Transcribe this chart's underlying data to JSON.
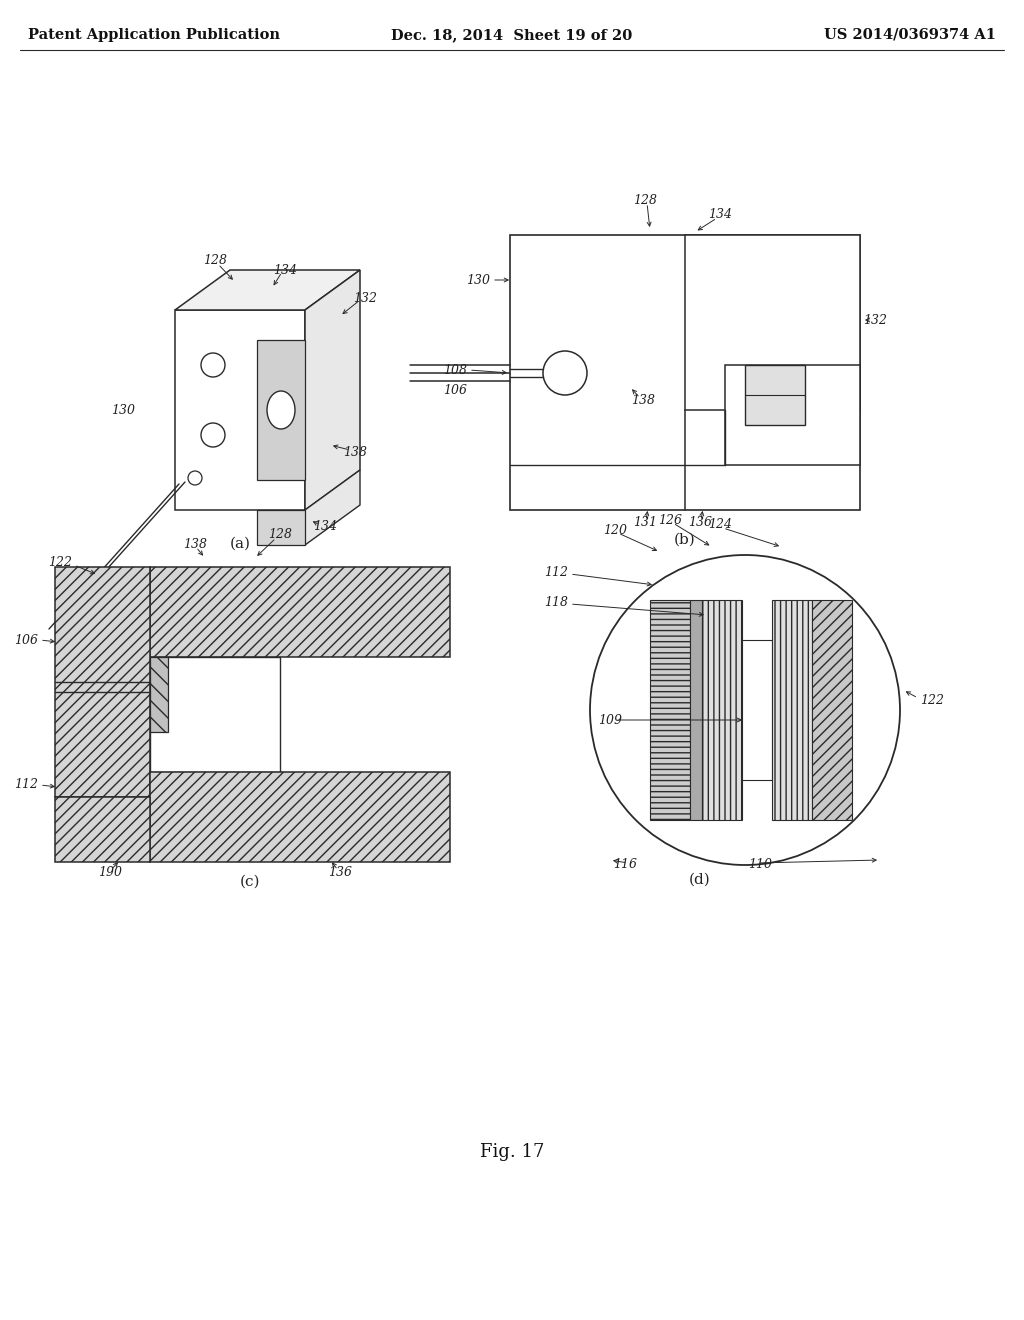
{
  "background_color": "#ffffff",
  "line_color": "#2a2a2a",
  "text_color": "#222222",
  "header_left": "Patent Application Publication",
  "header_center": "Dec. 18, 2014  Sheet 19 of 20",
  "header_right": "US 2014/0369374 A1",
  "header_fontsize": 10.5,
  "fig_label": "Fig. 17",
  "label_fontsize": 9,
  "sublabel_fontsize": 11
}
